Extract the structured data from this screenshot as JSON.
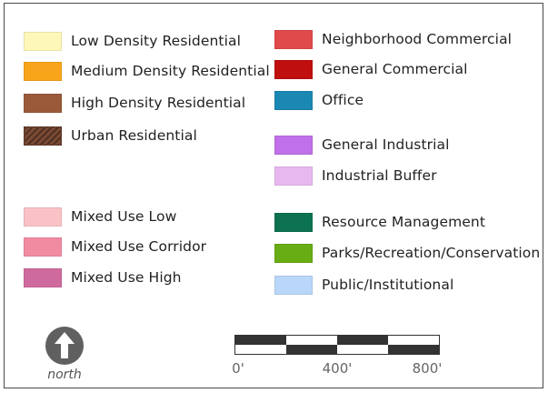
{
  "legend": {
    "left_column": [
      {
        "label": "Low Density Residential",
        "color": "#fdf7b8",
        "pattern": "solid"
      },
      {
        "label": "Medium Density Residential",
        "color": "#f8a51b",
        "pattern": "solid"
      },
      {
        "label": "High Density Residential",
        "color": "#9a5a3a",
        "pattern": "solid"
      },
      {
        "label": "Urban Residential",
        "color": "#7a4a33",
        "pattern": "hatched"
      },
      {
        "label": "Mixed Use Low",
        "color": "#f9c3c6",
        "pattern": "solid"
      },
      {
        "label": "Mixed Use Corridor",
        "color": "#f08ba2",
        "pattern": "solid"
      },
      {
        "label": "Mixed Use High",
        "color": "#cf6a9e",
        "pattern": "solid"
      }
    ],
    "right_column": [
      {
        "label": "Neighborhood Commercial",
        "color": "#e04a4a",
        "pattern": "solid"
      },
      {
        "label": "General Commercial",
        "color": "#c00f0f",
        "pattern": "solid"
      },
      {
        "label": "Office",
        "color": "#1b87b3",
        "pattern": "solid"
      },
      {
        "label": "General Industrial",
        "color": "#c070e8",
        "pattern": "solid"
      },
      {
        "label": "Industrial Buffer",
        "color": "#e7b8f0",
        "pattern": "solid"
      },
      {
        "label": "Resource Management",
        "color": "#0c7251",
        "pattern": "solid"
      },
      {
        "label": "Parks/Recreation/Conservation",
        "color": "#69ad14",
        "pattern": "solid"
      },
      {
        "label": "Public/Institutional",
        "color": "#b9d7f8",
        "pattern": "solid"
      }
    ]
  },
  "north_arrow": {
    "label": "north",
    "icon": "north-arrow-icon",
    "color": "#606060"
  },
  "scale_bar": {
    "ticks": [
      "0'",
      "400'",
      "800'"
    ]
  }
}
